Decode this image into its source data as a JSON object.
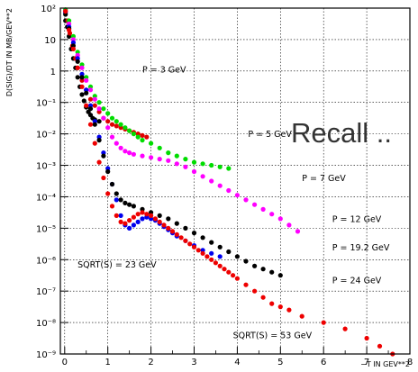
{
  "chart_data": {
    "type": "scatter",
    "xlabel": "−T IN GEV**2",
    "ylabel": "D(SIG)/DT IN MB/GEV**2",
    "xlim": [
      -0.1,
      8
    ],
    "ylog": true,
    "ylim_exp": [
      -9,
      2
    ],
    "grid": true,
    "x_ticks": [
      0,
      1,
      2,
      3,
      4,
      5,
      6,
      7,
      8
    ],
    "y_ticks": [
      {
        "exp": -9,
        "label": "10⁻⁹"
      },
      {
        "exp": -8,
        "label": "10⁻⁸"
      },
      {
        "exp": -7,
        "label": "10⁻⁷"
      },
      {
        "exp": -6,
        "label": "10⁻⁶"
      },
      {
        "exp": -5,
        "label": "10⁻⁵"
      },
      {
        "exp": -4,
        "label": "10⁻⁴"
      },
      {
        "exp": -3,
        "label": "10⁻³"
      },
      {
        "exp": -2,
        "label": "10⁻²"
      },
      {
        "exp": -1,
        "label": "10⁻¹"
      },
      {
        "exp": 0,
        "label": "1"
      },
      {
        "exp": 1,
        "label": "10"
      },
      {
        "exp": 2,
        "label": "10²"
      }
    ],
    "series": [
      {
        "name": "P = 3 GeV",
        "color": "#000000",
        "points": [
          [
            0.02,
            1.6
          ],
          [
            0.06,
            1.4
          ],
          [
            0.1,
            1.1
          ],
          [
            0.15,
            0.7
          ],
          [
            0.2,
            0.4
          ],
          [
            0.25,
            0.1
          ],
          [
            0.3,
            -0.2
          ],
          [
            0.35,
            -0.5
          ],
          [
            0.4,
            -0.75
          ],
          [
            0.45,
            -0.95
          ],
          [
            0.5,
            -1.15
          ],
          [
            0.55,
            -1.3
          ],
          [
            0.6,
            -1.4
          ],
          [
            0.65,
            -1.5
          ],
          [
            0.7,
            -1.55
          ],
          [
            0.8,
            -1.6
          ]
        ]
      },
      {
        "name": "P = 5 GeV",
        "color": "#dd0000",
        "points": [
          [
            0.02,
            1.9
          ],
          [
            0.07,
            1.6
          ],
          [
            0.12,
            1.2
          ],
          [
            0.18,
            0.8
          ],
          [
            0.25,
            0.4
          ],
          [
            0.3,
            0.1
          ],
          [
            0.4,
            -0.3
          ],
          [
            0.5,
            -0.6
          ],
          [
            0.6,
            -0.9
          ],
          [
            0.7,
            -1.1
          ],
          [
            0.8,
            -1.3
          ],
          [
            0.9,
            -1.5
          ],
          [
            1.0,
            -1.6
          ],
          [
            1.1,
            -1.7
          ],
          [
            1.2,
            -1.75
          ],
          [
            1.3,
            -1.8
          ],
          [
            1.4,
            -1.85
          ],
          [
            1.5,
            -1.9
          ],
          [
            1.6,
            -1.95
          ],
          [
            1.7,
            -2.0
          ],
          [
            1.8,
            -2.05
          ],
          [
            1.9,
            -2.1
          ]
        ]
      },
      {
        "name": "P = 7 GeV",
        "color": "#00dd00",
        "points": [
          [
            0.02,
            1.95
          ],
          [
            0.1,
            1.6
          ],
          [
            0.2,
            1.1
          ],
          [
            0.3,
            0.6
          ],
          [
            0.4,
            0.2
          ],
          [
            0.5,
            -0.2
          ],
          [
            0.6,
            -0.5
          ],
          [
            0.7,
            -0.8
          ],
          [
            0.8,
            -1.0
          ],
          [
            0.9,
            -1.2
          ],
          [
            1.0,
            -1.35
          ],
          [
            1.1,
            -1.5
          ],
          [
            1.2,
            -1.6
          ],
          [
            1.3,
            -1.7
          ],
          [
            1.4,
            -1.8
          ],
          [
            1.5,
            -1.9
          ],
          [
            1.6,
            -2.0
          ],
          [
            1.7,
            -2.1
          ],
          [
            1.8,
            -2.2
          ],
          [
            2.0,
            -2.3
          ],
          [
            2.2,
            -2.45
          ],
          [
            2.4,
            -2.6
          ],
          [
            2.6,
            -2.7
          ],
          [
            2.8,
            -2.8
          ],
          [
            3.0,
            -2.9
          ],
          [
            3.2,
            -2.95
          ],
          [
            3.4,
            -3.0
          ],
          [
            3.6,
            -3.05
          ],
          [
            3.8,
            -3.1
          ]
        ]
      },
      {
        "name": "P = 12 GeV",
        "color": "#ff00ff",
        "points": [
          [
            0.02,
            1.9
          ],
          [
            0.1,
            1.5
          ],
          [
            0.2,
            1.0
          ],
          [
            0.3,
            0.5
          ],
          [
            0.4,
            0.1
          ],
          [
            0.5,
            -0.3
          ],
          [
            0.6,
            -0.6
          ],
          [
            0.7,
            -0.9
          ],
          [
            0.8,
            -1.2
          ],
          [
            0.9,
            -1.5
          ],
          [
            1.0,
            -1.8
          ],
          [
            1.1,
            -2.1
          ],
          [
            1.2,
            -2.3
          ],
          [
            1.3,
            -2.45
          ],
          [
            1.4,
            -2.55
          ],
          [
            1.5,
            -2.6
          ],
          [
            1.6,
            -2.65
          ],
          [
            1.8,
            -2.7
          ],
          [
            2.0,
            -2.75
          ],
          [
            2.2,
            -2.8
          ],
          [
            2.4,
            -2.85
          ],
          [
            2.6,
            -2.95
          ],
          [
            2.8,
            -3.05
          ],
          [
            3.0,
            -3.2
          ],
          [
            3.2,
            -3.35
          ],
          [
            3.4,
            -3.5
          ],
          [
            3.6,
            -3.65
          ],
          [
            3.8,
            -3.8
          ],
          [
            4.0,
            -3.95
          ],
          [
            4.2,
            -4.1
          ],
          [
            4.4,
            -4.25
          ],
          [
            4.6,
            -4.4
          ],
          [
            4.8,
            -4.55
          ],
          [
            5.0,
            -4.7
          ],
          [
            5.2,
            -4.9
          ],
          [
            5.4,
            -5.1
          ]
        ]
      },
      {
        "name": "P = 19.2 GeV",
        "color": "#0000ee",
        "points": [
          [
            0.02,
            1.85
          ],
          [
            0.1,
            1.4
          ],
          [
            0.2,
            0.9
          ],
          [
            0.3,
            0.4
          ],
          [
            0.4,
            -0.1
          ],
          [
            0.5,
            -0.6
          ],
          [
            0.6,
            -1.1
          ],
          [
            0.7,
            -1.6
          ],
          [
            0.8,
            -2.1
          ],
          [
            0.9,
            -2.6
          ],
          [
            1.0,
            -3.1
          ],
          [
            1.1,
            -3.6
          ],
          [
            1.2,
            -4.1
          ],
          [
            1.3,
            -4.6
          ],
          [
            1.4,
            -4.9
          ],
          [
            1.5,
            -5.0
          ],
          [
            1.6,
            -4.9
          ],
          [
            1.7,
            -4.8
          ],
          [
            1.8,
            -4.7
          ],
          [
            1.9,
            -4.65
          ],
          [
            2.0,
            -4.7
          ],
          [
            2.1,
            -4.75
          ],
          [
            2.2,
            -4.85
          ],
          [
            2.3,
            -4.95
          ],
          [
            2.4,
            -5.05
          ],
          [
            2.5,
            -5.15
          ],
          [
            2.6,
            -5.25
          ],
          [
            2.8,
            -5.4
          ],
          [
            3.0,
            -5.55
          ],
          [
            3.2,
            -5.7
          ],
          [
            3.4,
            -5.8
          ],
          [
            3.6,
            -5.9
          ]
        ]
      },
      {
        "name": "P = 24 GeV",
        "color": "#000000",
        "points": [
          [
            0.02,
            1.8
          ],
          [
            0.1,
            1.35
          ],
          [
            0.2,
            0.8
          ],
          [
            0.3,
            0.3
          ],
          [
            0.4,
            -0.2
          ],
          [
            0.5,
            -0.7
          ],
          [
            0.6,
            -1.2
          ],
          [
            0.7,
            -1.7
          ],
          [
            0.8,
            -2.2
          ],
          [
            0.9,
            -2.7
          ],
          [
            1.0,
            -3.2
          ],
          [
            1.1,
            -3.6
          ],
          [
            1.2,
            -3.9
          ],
          [
            1.3,
            -4.1
          ],
          [
            1.4,
            -4.2
          ],
          [
            1.5,
            -4.25
          ],
          [
            1.6,
            -4.3
          ],
          [
            1.8,
            -4.4
          ],
          [
            2.0,
            -4.5
          ],
          [
            2.2,
            -4.6
          ],
          [
            2.4,
            -4.7
          ],
          [
            2.6,
            -4.85
          ],
          [
            2.8,
            -5.0
          ],
          [
            3.0,
            -5.15
          ],
          [
            3.2,
            -5.3
          ],
          [
            3.4,
            -5.45
          ],
          [
            3.6,
            -5.6
          ],
          [
            3.8,
            -5.75
          ],
          [
            4.0,
            -5.9
          ],
          [
            4.2,
            -6.05
          ],
          [
            4.4,
            -6.2
          ],
          [
            4.6,
            -6.3
          ],
          [
            4.8,
            -6.4
          ],
          [
            5.0,
            -6.5
          ]
        ]
      },
      {
        "name": "SQRT(S) = 53 GeV",
        "color": "#ee0000",
        "points": [
          [
            0.02,
            1.9
          ],
          [
            0.1,
            1.3
          ],
          [
            0.2,
            0.7
          ],
          [
            0.3,
            0.1
          ],
          [
            0.4,
            -0.5
          ],
          [
            0.5,
            -1.1
          ],
          [
            0.6,
            -1.7
          ],
          [
            0.7,
            -2.3
          ],
          [
            0.8,
            -2.9
          ],
          [
            0.9,
            -3.4
          ],
          [
            1.0,
            -3.9
          ],
          [
            1.1,
            -4.3
          ],
          [
            1.2,
            -4.6
          ],
          [
            1.3,
            -4.8
          ],
          [
            1.4,
            -4.85
          ],
          [
            1.5,
            -4.75
          ],
          [
            1.6,
            -4.65
          ],
          [
            1.7,
            -4.55
          ],
          [
            1.8,
            -4.5
          ],
          [
            1.9,
            -4.55
          ],
          [
            2.0,
            -4.6
          ],
          [
            2.1,
            -4.7
          ],
          [
            2.2,
            -4.8
          ],
          [
            2.3,
            -4.9
          ],
          [
            2.4,
            -5.0
          ],
          [
            2.5,
            -5.1
          ],
          [
            2.6,
            -5.2
          ],
          [
            2.7,
            -5.3
          ],
          [
            2.8,
            -5.4
          ],
          [
            2.9,
            -5.5
          ],
          [
            3.0,
            -5.6
          ],
          [
            3.1,
            -5.7
          ],
          [
            3.2,
            -5.8
          ],
          [
            3.3,
            -5.9
          ],
          [
            3.4,
            -6.0
          ],
          [
            3.5,
            -6.1
          ],
          [
            3.6,
            -6.2
          ],
          [
            3.7,
            -6.3
          ],
          [
            3.8,
            -6.4
          ],
          [
            3.9,
            -6.5
          ],
          [
            4.0,
            -6.6
          ],
          [
            4.2,
            -6.8
          ],
          [
            4.4,
            -7.0
          ],
          [
            4.6,
            -7.2
          ],
          [
            4.8,
            -7.4
          ],
          [
            5.0,
            -7.5
          ],
          [
            5.2,
            -7.6
          ],
          [
            5.5,
            -7.8
          ],
          [
            6.0,
            -8.0
          ],
          [
            6.5,
            -8.2
          ],
          [
            7.0,
            -8.5
          ],
          [
            7.3,
            -8.75
          ],
          [
            7.6,
            -9.0
          ]
        ]
      }
    ],
    "annotations": [
      {
        "text": "P = 3 GeV",
        "x": 1.8,
        "y": -0.05
      },
      {
        "text": "P = 5 GeV",
        "x": 4.25,
        "y": -2.1
      },
      {
        "text": "P = 7 GeV",
        "x": 5.5,
        "y": -3.5
      },
      {
        "text": "P = 12 GeV",
        "x": 6.2,
        "y": -4.8
      },
      {
        "text": "P = 19.2 GeV",
        "x": 6.2,
        "y": -5.7
      },
      {
        "text": "P = 24 GeV",
        "x": 6.2,
        "y": -6.75
      },
      {
        "text": "SQRT(S) = 23 GeV",
        "x": 0.3,
        "y": -6.25
      },
      {
        "text": "SQRT(S) = 53 GeV",
        "x": 3.9,
        "y": -8.5
      }
    ],
    "overlay_text": "Recall .."
  }
}
